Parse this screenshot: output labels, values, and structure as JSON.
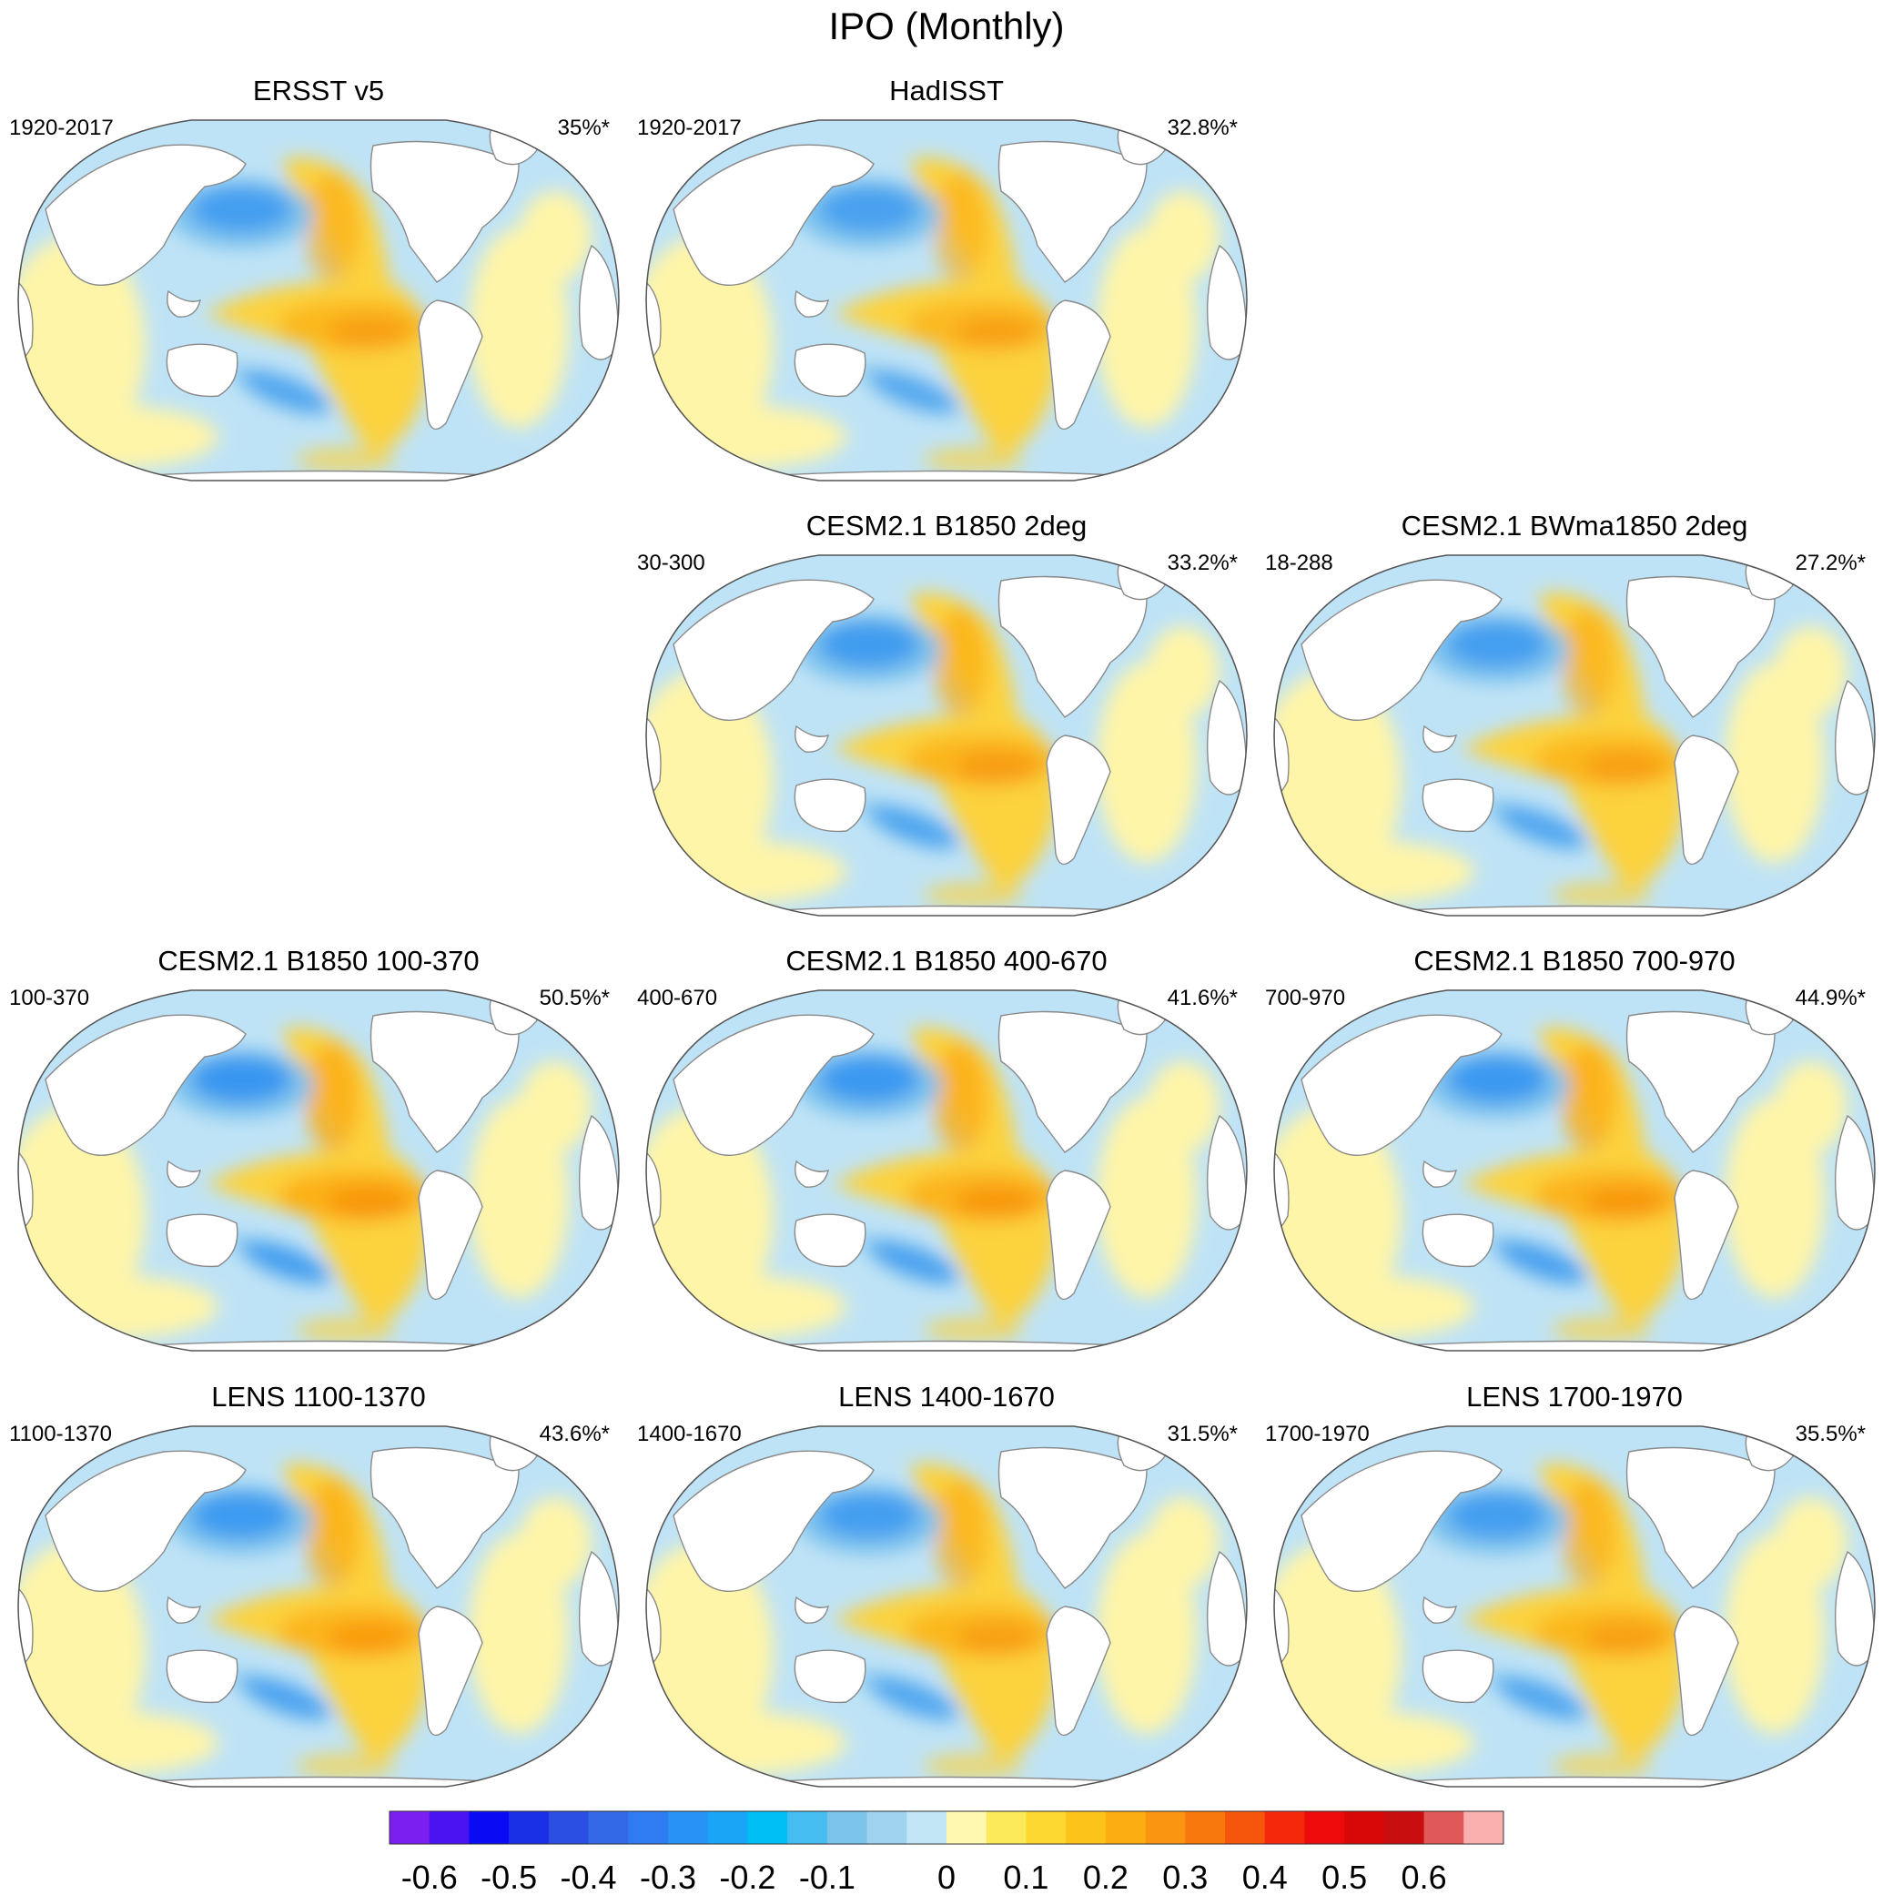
{
  "title": "IPO (Monthly)",
  "palette": {
    "neg_deep": "#1e50e6",
    "neg_strong": "#2a8ef0",
    "neg_mid": "#7ec3ee",
    "neg_light": "#bfe3f6",
    "pos_light": "#fff5a8",
    "pos_mid": "#fcd23c",
    "pos_strong": "#fbab12",
    "pos_deep": "#f5860a",
    "land": "#ffffff",
    "coast": "#8a8a8a"
  },
  "panels": [
    {
      "title": "ERSST v5",
      "period": "1920-2017",
      "variance": "35%*",
      "intensity": 0.8
    },
    {
      "title": "HadISST",
      "period": "1920-2017",
      "variance": "32.8%*",
      "intensity": 0.75
    },
    {
      "title": "CESM2.1 B1850 2deg",
      "period": "30-300",
      "variance": "33.2%*",
      "intensity": 0.85
    },
    {
      "title": "CESM2.1 BWma1850 2deg",
      "period": "18-288",
      "variance": "27.2%*",
      "intensity": 0.8
    },
    {
      "title": "CESM2.1 B1850 100-370",
      "period": "100-370",
      "variance": "50.5%*",
      "intensity": 1.0
    },
    {
      "title": "CESM2.1 B1850 400-670",
      "period": "400-670",
      "variance": "41.6%*",
      "intensity": 0.95
    },
    {
      "title": "CESM2.1 B1850 700-970",
      "period": "700-970",
      "variance": "44.9%*",
      "intensity": 0.95
    },
    {
      "title": "LENS 1100-1370",
      "period": "1100-1370",
      "variance": "43.6%*",
      "intensity": 0.9
    },
    {
      "title": "LENS 1400-1670",
      "period": "1400-1670",
      "variance": "31.5%*",
      "intensity": 0.8
    },
    {
      "title": "LENS 1700-1970",
      "period": "1700-1970",
      "variance": "35.5%*",
      "intensity": 0.8
    }
  ],
  "colorbar": {
    "colors": [
      "#7a1ff0",
      "#4a12f0",
      "#0a0af5",
      "#1a30e6",
      "#2b4fe3",
      "#3369e6",
      "#2f7cf2",
      "#2893f5",
      "#19a6f7",
      "#00bff5",
      "#45bdf0",
      "#7cc4ea",
      "#9fd3f0",
      "#c2e6f5",
      "#fff8b0",
      "#fdea5a",
      "#fcd831",
      "#fcc41a",
      "#fbad12",
      "#f99510",
      "#f8780d",
      "#f6560c",
      "#f5280a",
      "#ee0a0a",
      "#d80808",
      "#c80e0e",
      "#e05858",
      "#fbb0b0"
    ],
    "labels": [
      "-0.6",
      "-0.5",
      "-0.4",
      "-0.3",
      "-0.2",
      "-0.1",
      "0",
      "0.1",
      "0.2",
      "0.3",
      "0.4",
      "0.5",
      "0.6"
    ]
  }
}
